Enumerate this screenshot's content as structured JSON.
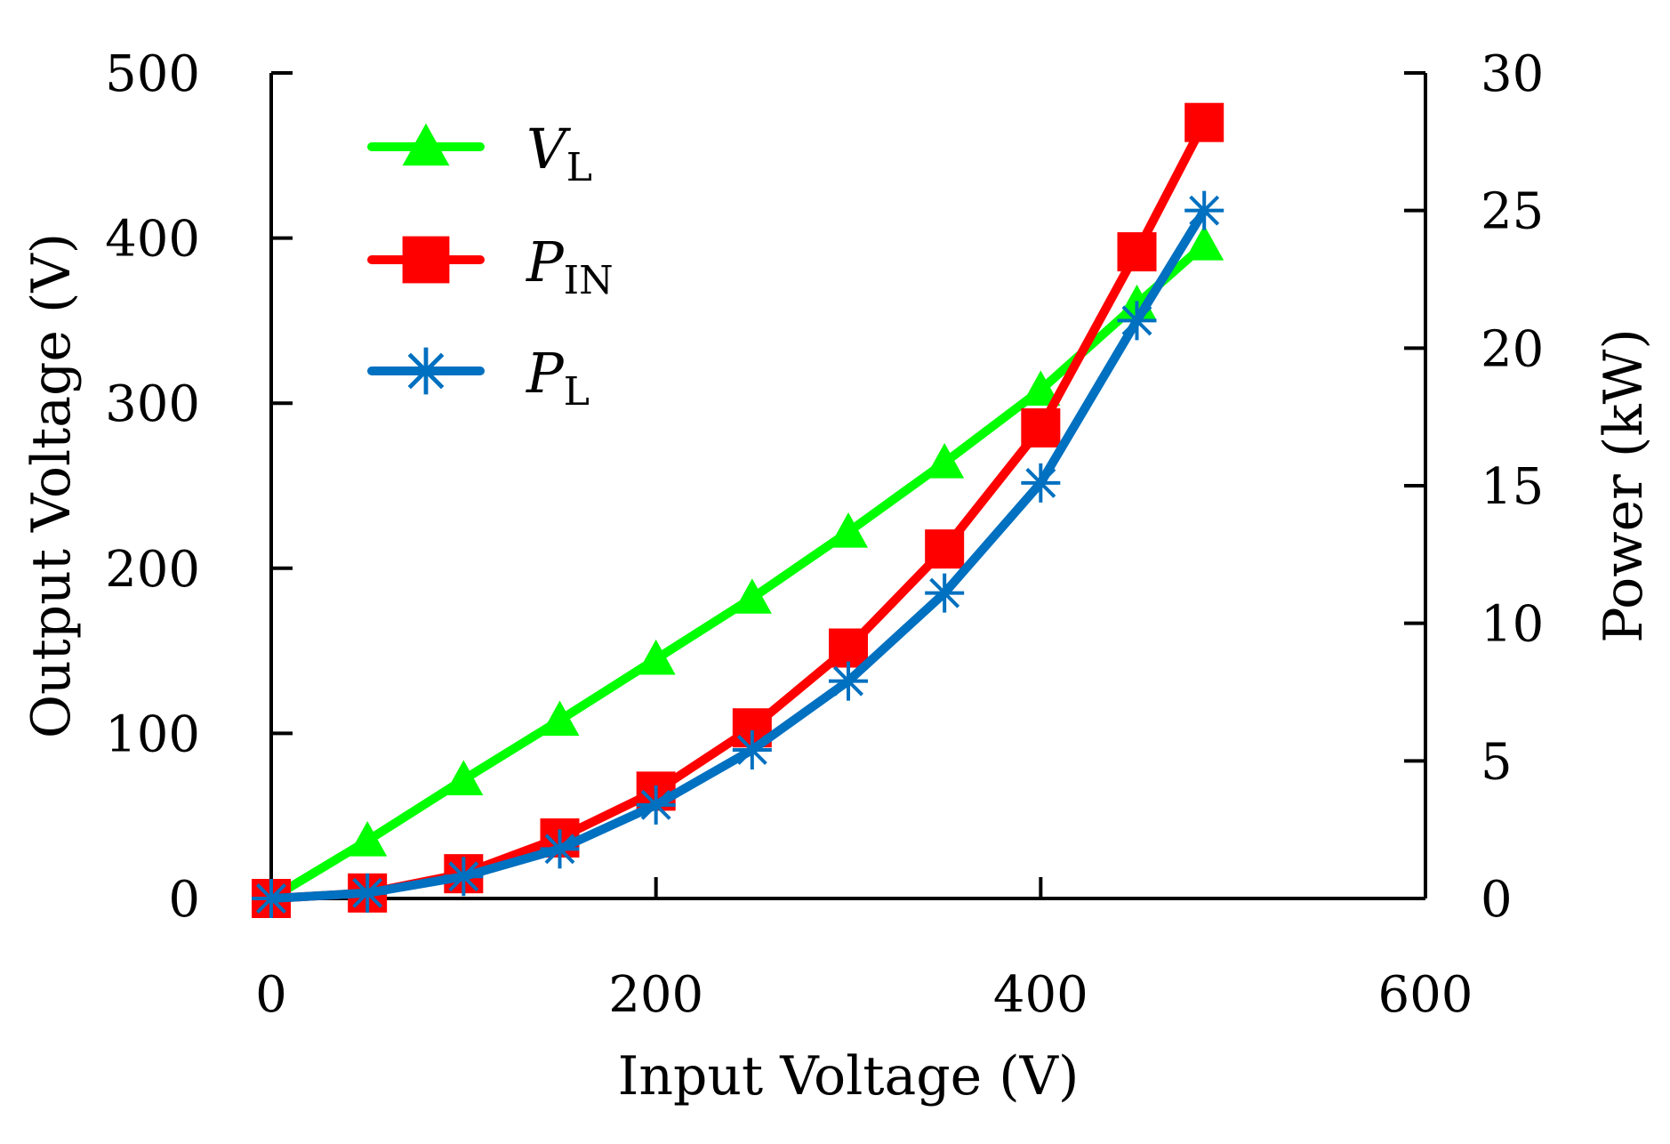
{
  "chart_data": {
    "type": "line",
    "xlabel": "Input Voltage (V)",
    "ylabel": "Output Voltage (V)",
    "y2label": "Power (kW)",
    "xlim": [
      0,
      600
    ],
    "ylim": [
      0,
      500
    ],
    "y2lim": [
      0,
      30
    ],
    "xticks": [
      0,
      200,
      400,
      600
    ],
    "yticks": [
      0,
      100,
      200,
      300,
      400,
      500
    ],
    "y2ticks": [
      0,
      5,
      10,
      15,
      20,
      25,
      30
    ],
    "grid": false,
    "legend_position": "top-left",
    "series": [
      {
        "key": "VL",
        "legend_main": "V",
        "legend_sub": "L",
        "axis": "left",
        "marker": "triangle",
        "color": "#00ff00",
        "x": [
          0,
          50,
          100,
          150,
          200,
          250,
          300,
          350,
          400,
          450,
          485
        ],
        "y": [
          0,
          35,
          72,
          108,
          145,
          182,
          222,
          264,
          308,
          360,
          396
        ]
      },
      {
        "key": "PIN",
        "legend_main": "P",
        "legend_sub": "IN",
        "axis": "right",
        "marker": "square",
        "color": "#ff0000",
        "x": [
          0,
          50,
          100,
          150,
          200,
          250,
          300,
          350,
          400,
          450,
          485
        ],
        "y": [
          0,
          0.2,
          0.9,
          2.2,
          3.9,
          6.2,
          9.1,
          12.7,
          17.1,
          23.5,
          28.2
        ]
      },
      {
        "key": "PL",
        "legend_main": "P",
        "legend_sub": "L",
        "axis": "right",
        "marker": "asterisk",
        "color": "#0070c0",
        "x": [
          0,
          50,
          100,
          150,
          200,
          250,
          300,
          350,
          400,
          450,
          485
        ],
        "y": [
          0,
          0.2,
          0.8,
          1.8,
          3.4,
          5.4,
          7.9,
          11.1,
          15.1,
          21.0,
          25.0
        ]
      }
    ]
  }
}
